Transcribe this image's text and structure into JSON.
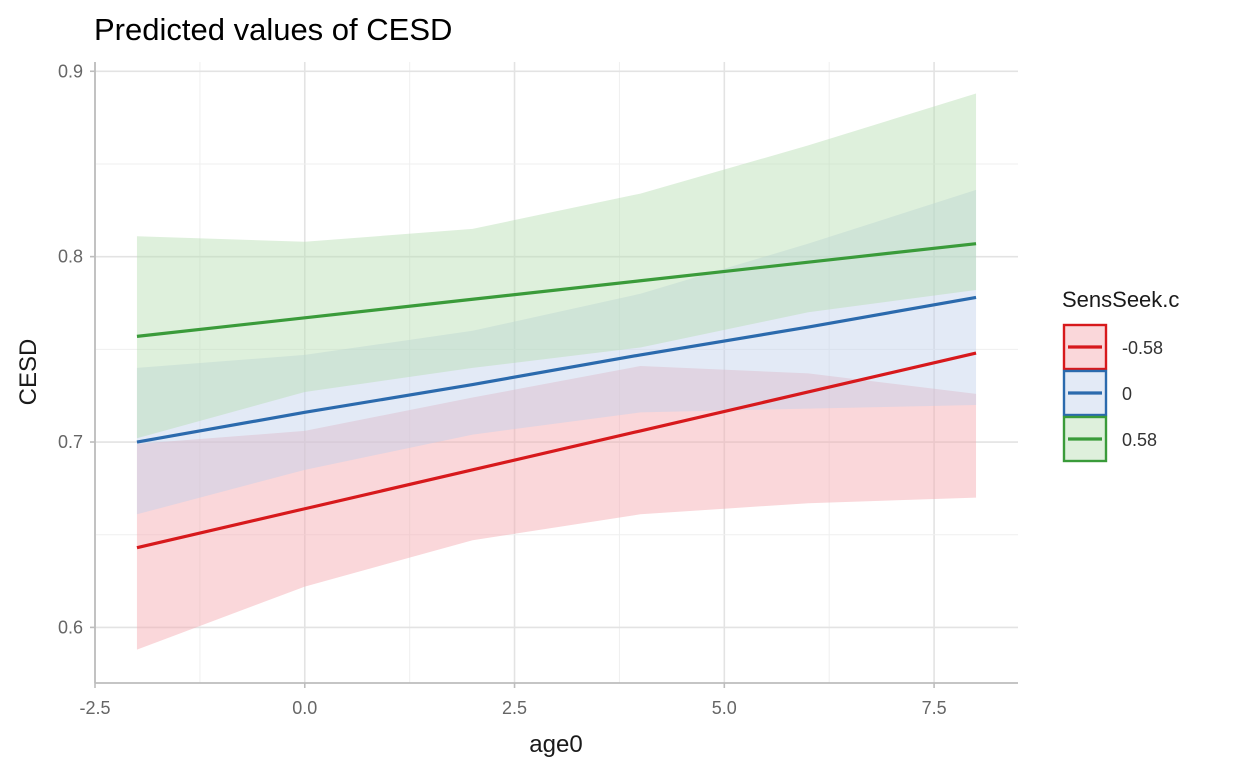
{
  "chart_data": {
    "type": "line",
    "title": "Predicted values of CESD",
    "xlabel": "age0",
    "ylabel": "CESD",
    "xlim": [
      -2.5,
      8.5
    ],
    "ylim": [
      0.57,
      0.905
    ],
    "x_ticks": [
      -2.5,
      0.0,
      2.5,
      5.0,
      7.5
    ],
    "x_tick_labels": [
      "-2.5",
      "0.0",
      "2.5",
      "5.0",
      "7.5"
    ],
    "y_ticks": [
      0.6,
      0.7,
      0.8,
      0.9
    ],
    "y_tick_labels": [
      "0.6",
      "0.7",
      "0.8",
      "0.9"
    ],
    "grid": true,
    "legend_title": "SensSeek.c",
    "legend_position": "right",
    "x": [
      -2,
      0,
      2,
      4,
      6,
      8
    ],
    "series": [
      {
        "name": "-0.58",
        "color": "#D7191C",
        "fill": "#F4A6AE",
        "values": [
          0.643,
          0.664,
          0.685,
          0.706,
          0.727,
          0.748
        ],
        "lower": [
          0.588,
          0.622,
          0.647,
          0.661,
          0.667,
          0.67
        ],
        "upper": [
          0.699,
          0.706,
          0.724,
          0.741,
          0.737,
          0.726
        ]
      },
      {
        "name": "0",
        "color": "#2B6AAD",
        "fill": "#C2D0EC",
        "values": [
          0.7,
          0.716,
          0.731,
          0.747,
          0.762,
          0.778
        ],
        "lower": [
          0.661,
          0.685,
          0.704,
          0.716,
          0.718,
          0.72
        ],
        "upper": [
          0.74,
          0.747,
          0.76,
          0.78,
          0.807,
          0.836
        ]
      },
      {
        "name": "0.58",
        "color": "#3A9B3A",
        "fill": "#B5DDB2",
        "values": [
          0.757,
          0.767,
          0.777,
          0.787,
          0.797,
          0.807
        ],
        "lower": [
          0.702,
          0.727,
          0.74,
          0.751,
          0.77,
          0.782
        ],
        "upper": [
          0.811,
          0.808,
          0.815,
          0.834,
          0.86,
          0.888
        ]
      }
    ]
  }
}
